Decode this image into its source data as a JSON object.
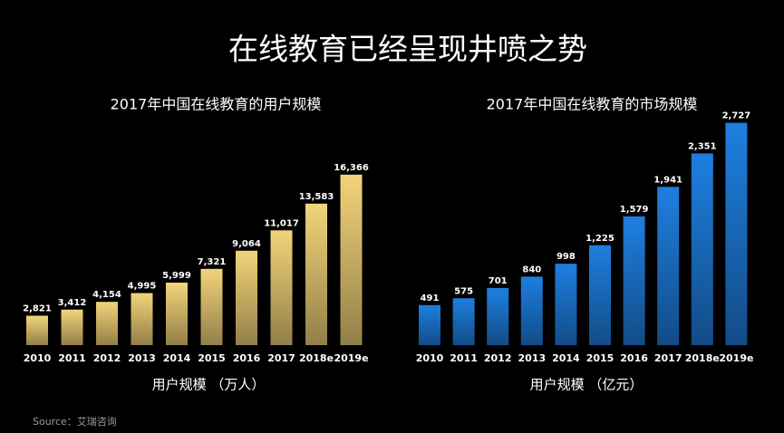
{
  "title": "在线教育已经呈现井喷之势",
  "source": "Source：艾瑞咨询",
  "chart_data": [
    {
      "type": "bar",
      "title": "2017年中国在线教育的用户规模",
      "x_label": "用户规模 （万人）",
      "categories": [
        "2010",
        "2011",
        "2012",
        "2013",
        "2014",
        "2015",
        "2016",
        "2017",
        "2018e",
        "2019e"
      ],
      "values": [
        2821,
        3412,
        4154,
        4995,
        5999,
        7321,
        9064,
        11017,
        13583,
        16366
      ],
      "value_labels": [
        "2,821",
        "3,412",
        "4,154",
        "4,995",
        "5,999",
        "7,321",
        "9,064",
        "11,017",
        "13,583",
        "16,366"
      ],
      "color": "#f3d47a",
      "ylim": [
        0,
        20000
      ]
    },
    {
      "type": "bar",
      "title": "2017年中国在线教育的市场规模",
      "x_label": "用户规模 （亿元）",
      "categories": [
        "2010",
        "2011",
        "2012",
        "2013",
        "2014",
        "2015",
        "2016",
        "2017",
        "2018e",
        "2019e"
      ],
      "values": [
        491,
        575,
        701,
        840,
        998,
        1225,
        1579,
        1941,
        2351,
        2727
      ],
      "value_labels": [
        "491",
        "575",
        "701",
        "840",
        "998",
        "1,225",
        "1,579",
        "1,941",
        "2,351",
        "2,727"
      ],
      "color": "#1e7fe0",
      "ylim": [
        0,
        3000
      ]
    }
  ]
}
